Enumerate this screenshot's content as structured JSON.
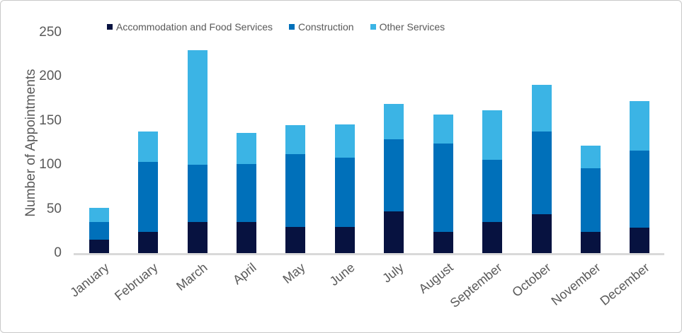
{
  "chart_data": {
    "type": "bar",
    "stacked": true,
    "title": "",
    "ylabel": "Number of Appointments",
    "xlabel": "",
    "ylim": [
      0,
      250
    ],
    "yticks": [
      0,
      50,
      100,
      150,
      200,
      250
    ],
    "grid": false,
    "legend_position": "top",
    "categories": [
      "January",
      "February",
      "March",
      "April",
      "May",
      "June",
      "July",
      "August",
      "September",
      "October",
      "November",
      "December"
    ],
    "series": [
      {
        "name": "Accommodation and Food Services",
        "color": "#071240",
        "values": [
          15,
          24,
          35,
          35,
          30,
          30,
          47,
          24,
          35,
          44,
          24,
          29
        ]
      },
      {
        "name": "Construction",
        "color": "#0070BA",
        "values": [
          20,
          79,
          65,
          66,
          82,
          78,
          82,
          100,
          71,
          94,
          72,
          87
        ]
      },
      {
        "name": "Other Services",
        "color": "#3BB4E5",
        "values": [
          16,
          35,
          130,
          35,
          33,
          38,
          40,
          33,
          56,
          53,
          26,
          56
        ]
      }
    ]
  },
  "colors": {
    "axis_line": "#D9D9D9",
    "tick_text": "#595959",
    "frame_border": "#C9C9C9",
    "background": "#FFFFFF"
  }
}
